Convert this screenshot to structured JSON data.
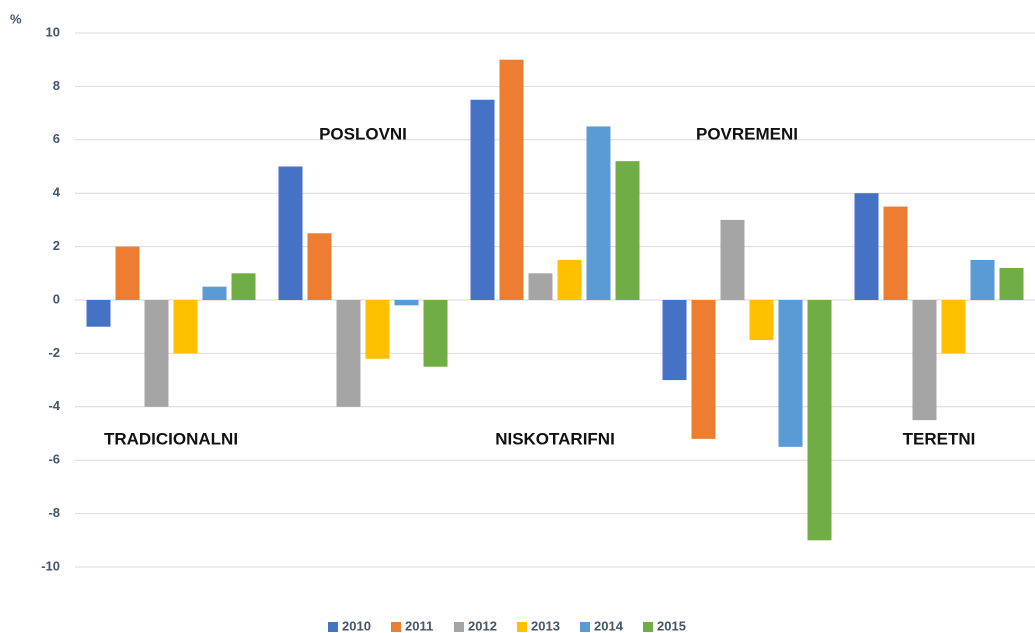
{
  "chart_data": {
    "type": "bar",
    "y_label": "%",
    "categories": [
      "TRADICIONALNI",
      "POSLOVNI",
      "NISKOTARIFNI",
      "POVREMENI",
      "TERETNI"
    ],
    "series": [
      {
        "name": "2010",
        "color": "#4472c4",
        "values": [
          -1,
          5,
          7.5,
          -3,
          4
        ]
      },
      {
        "name": "2011",
        "color": "#ed7d31",
        "values": [
          2,
          2.5,
          9,
          -5.2,
          3.5
        ]
      },
      {
        "name": "2012",
        "color": "#a5a5a5",
        "values": [
          -4,
          -4,
          1,
          3,
          -4.5
        ]
      },
      {
        "name": "2013",
        "color": "#ffc000",
        "values": [
          -2,
          -2.2,
          1.5,
          -1.5,
          -2
        ]
      },
      {
        "name": "2014",
        "color": "#5b9bd5",
        "values": [
          0.5,
          -0.2,
          6.5,
          -5.5,
          1.5
        ]
      },
      {
        "name": "2015",
        "color": "#70ad47",
        "values": [
          1,
          -2.5,
          5.2,
          -9,
          1.2
        ]
      }
    ],
    "ylim": [
      -10,
      10
    ],
    "yticks": [
      -10,
      -8,
      -6,
      -4,
      -2,
      0,
      2,
      4,
      6,
      8,
      10
    ],
    "grid": true,
    "legend": "bottom"
  }
}
